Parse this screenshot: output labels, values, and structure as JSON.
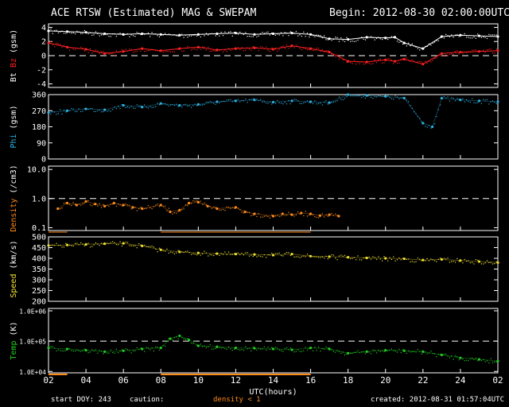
{
  "header": {
    "title": "ACE RTSW (Estimated) MAG & SWEPAM",
    "begin_label": "Begin:",
    "begin_value": "2012-08-30 02:00:00UTC"
  },
  "footer": {
    "start_doy_label": "start DOY:",
    "start_doy_value": "243",
    "caution": "caution:",
    "density_note": "density < 1",
    "created_label": "created:",
    "created_value": "2012-08-31 01:57:04UTC"
  },
  "colors": {
    "background": "#000000",
    "axes": "#ffffff",
    "bt": "#ffffff",
    "bz": "#ff2020",
    "phi": "#2ab0e0",
    "density": "#ff8c1a",
    "speed": "#f0e030",
    "temp": "#22cc22"
  },
  "chart_data": [
    {
      "type": "line",
      "panel": "mag-b",
      "ylabel_parts": [
        "Bt",
        "Bz",
        "(gsm)"
      ],
      "ylabel_colors": [
        "#ffffff",
        "#ff2020",
        "#ffffff"
      ],
      "ylim": [
        -4.5,
        4.5
      ],
      "yticks": [
        -4,
        -2,
        0,
        2,
        4
      ],
      "ytick_labels": [
        "-4",
        "-2",
        "0",
        "2",
        "4"
      ],
      "dashed_ref": [
        0
      ],
      "x": [
        0,
        1,
        2,
        3,
        4,
        5,
        6,
        7,
        8,
        9,
        10,
        11,
        12,
        13,
        14,
        15,
        16,
        17,
        18,
        18.5,
        19,
        20,
        21,
        22,
        23,
        24
      ],
      "series": [
        {
          "name": "Bt",
          "color": "#ffffff",
          "values": [
            3.5,
            3.4,
            3.3,
            3.1,
            3.0,
            3.1,
            3.0,
            2.9,
            3.0,
            3.1,
            3.2,
            3.0,
            3.1,
            3.2,
            3.0,
            2.4,
            2.3,
            2.6,
            2.5,
            2.6,
            1.8,
            1.0,
            2.7,
            2.9,
            2.8,
            2.7
          ]
        },
        {
          "name": "Bz",
          "color": "#ff2020",
          "values": [
            1.8,
            1.2,
            0.9,
            0.3,
            0.6,
            1.0,
            0.7,
            1.0,
            1.2,
            0.8,
            1.0,
            1.1,
            0.9,
            1.4,
            1.0,
            0.5,
            -0.8,
            -0.9,
            -0.6,
            -0.8,
            -0.5,
            -1.2,
            0.3,
            0.5,
            0.6,
            0.7
          ]
        }
      ]
    },
    {
      "type": "scatter",
      "panel": "mag-phi",
      "ylabel_parts": [
        "Phi",
        "(gsm)"
      ],
      "ylabel_colors": [
        "#2ab0e0",
        "#ffffff"
      ],
      "ylim": [
        0,
        360
      ],
      "yticks": [
        0,
        90,
        180,
        270,
        360
      ],
      "ytick_labels": [
        "0",
        "90",
        "180",
        "270",
        "360"
      ],
      "x": [
        0,
        1,
        2,
        3,
        4,
        5,
        6,
        7,
        8,
        9,
        10,
        11,
        12,
        13,
        14,
        15,
        16,
        17,
        18,
        19,
        20,
        20.5,
        21,
        22,
        23,
        24
      ],
      "series": [
        {
          "name": "Phi",
          "color": "#2ab0e0",
          "values": [
            260,
            270,
            280,
            275,
            300,
            290,
            310,
            300,
            305,
            320,
            325,
            330,
            318,
            325,
            320,
            315,
            360,
            355,
            350,
            340,
            200,
            180,
            340,
            330,
            325,
            320
          ]
        }
      ]
    },
    {
      "type": "scatter",
      "panel": "density",
      "ylabel_parts": [
        "Density",
        "(/cm3)"
      ],
      "ylabel_colors": [
        "#ff8c1a",
        "#ffffff"
      ],
      "yscale": "log",
      "ylim": [
        0.08,
        13
      ],
      "yticks": [
        0.1,
        1.0,
        10.0
      ],
      "ytick_labels": [
        "0.1",
        "1.0",
        "10.0"
      ],
      "dashed_ref": [
        1.0
      ],
      "x": [
        0.5,
        1,
        1.5,
        2,
        2.5,
        3,
        3.5,
        4,
        4.5,
        5,
        6,
        6.5,
        7,
        7.5,
        8,
        8.5,
        9,
        10,
        10.5,
        11,
        12,
        12.5,
        13,
        13.5,
        14,
        14.5,
        15,
        15.5
      ],
      "series": [
        {
          "name": "Density",
          "color": "#ff8c1a",
          "values": [
            0.45,
            0.7,
            0.6,
            0.8,
            0.65,
            0.55,
            0.7,
            0.6,
            0.5,
            0.45,
            0.6,
            0.35,
            0.4,
            0.7,
            0.75,
            0.55,
            0.45,
            0.5,
            0.35,
            0.3,
            0.25,
            0.3,
            0.28,
            0.32,
            0.3,
            0.26,
            0.28,
            0.25
          ]
        }
      ]
    },
    {
      "type": "scatter",
      "panel": "speed",
      "ylabel_parts": [
        "Speed",
        "(km/s)"
      ],
      "ylabel_colors": [
        "#f0e030",
        "#ffffff"
      ],
      "ylim": [
        200,
        500
      ],
      "yticks": [
        200,
        250,
        300,
        350,
        400,
        450,
        500
      ],
      "ytick_labels": [
        "200",
        "250",
        "300",
        "350",
        "400",
        "450",
        "500"
      ],
      "x": [
        0,
        1,
        2,
        3,
        4,
        5,
        6,
        7,
        8,
        9,
        10,
        11,
        12,
        13,
        14,
        15,
        16,
        17,
        18,
        19,
        20,
        21,
        22,
        23,
        24
      ],
      "series": [
        {
          "name": "Speed",
          "color": "#f0e030",
          "values": [
            460,
            462,
            465,
            468,
            470,
            458,
            440,
            430,
            425,
            422,
            420,
            418,
            415,
            420,
            410,
            408,
            405,
            402,
            400,
            398,
            392,
            395,
            390,
            385,
            380
          ]
        }
      ]
    },
    {
      "type": "scatter",
      "panel": "temp",
      "ylabel_parts": [
        "Temp",
        "(K)"
      ],
      "ylabel_colors": [
        "#22cc22",
        "#ffffff"
      ],
      "yscale": "log",
      "ylim": [
        9000,
        1200000
      ],
      "yticks": [
        10000,
        100000,
        1000000
      ],
      "ytick_labels": [
        "1.0E+04",
        "1.0E+05",
        "1.0E+06"
      ],
      "dashed_ref": [
        100000
      ],
      "x": [
        0,
        1,
        2,
        3,
        4,
        5,
        6,
        6.5,
        7,
        7.5,
        8,
        9,
        10,
        11,
        12,
        13,
        14,
        15,
        16,
        17,
        18,
        19,
        20,
        21,
        22,
        23,
        24
      ],
      "series": [
        {
          "name": "Temp",
          "color": "#22cc22",
          "values": [
            60000,
            55000,
            50000,
            45000,
            48000,
            55000,
            60000,
            120000,
            150000,
            110000,
            70000,
            65000,
            60000,
            58000,
            55000,
            52000,
            60000,
            55000,
            40000,
            45000,
            50000,
            48000,
            45000,
            35000,
            28000,
            25000,
            22000
          ]
        }
      ]
    }
  ],
  "x_axis": {
    "label": "UTC(hours)",
    "range": [
      0,
      24
    ],
    "ticks": [
      0,
      2,
      4,
      6,
      8,
      10,
      12,
      14,
      16,
      18,
      20,
      22,
      24
    ],
    "tick_labels": [
      "02",
      "04",
      "06",
      "08",
      "10",
      "12",
      "14",
      "16",
      "18",
      "20",
      "22",
      "24",
      "02"
    ],
    "density_flag_intervals": [
      [
        0,
        1.0
      ],
      [
        6.0,
        14.0
      ]
    ]
  }
}
